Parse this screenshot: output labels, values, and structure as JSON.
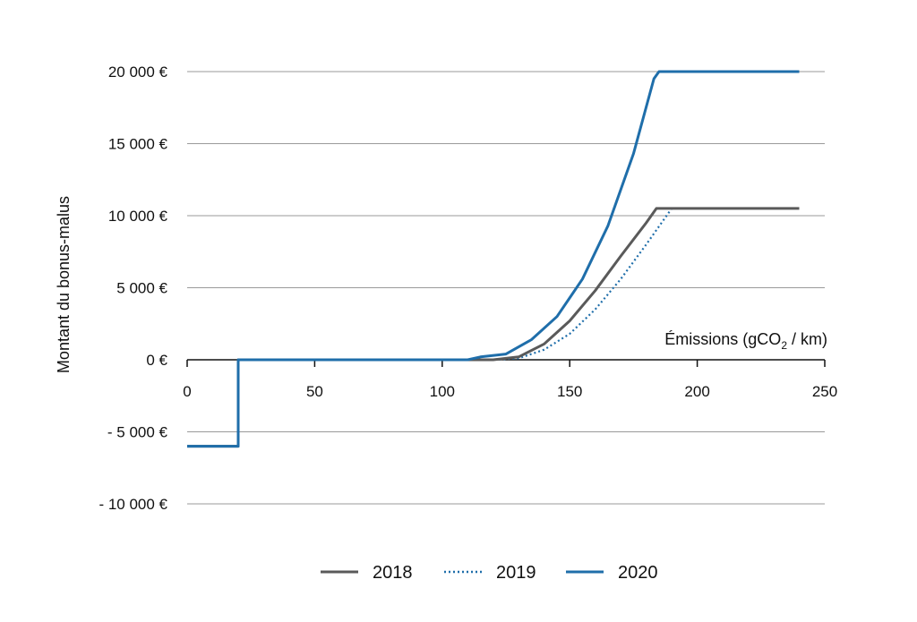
{
  "chart_data": {
    "type": "line",
    "ylabel": "Montant du bonus-malus",
    "xlabel": {
      "main": "Émissions (gCO",
      "sub": "2",
      "tail": " / km)"
    },
    "xlim": [
      0,
      250
    ],
    "ylim": [
      -10000,
      20000
    ],
    "x_ticks": [
      {
        "value": 0,
        "label": "0"
      },
      {
        "value": 50,
        "label": "50"
      },
      {
        "value": 100,
        "label": "100"
      },
      {
        "value": 150,
        "label": "150"
      },
      {
        "value": 200,
        "label": "200"
      },
      {
        "value": 250,
        "label": "250"
      }
    ],
    "y_ticks": [
      {
        "value": 20000,
        "label": "20 000 €"
      },
      {
        "value": 15000,
        "label": "15 000 €"
      },
      {
        "value": 10000,
        "label": "10 000 €"
      },
      {
        "value": 5000,
        "label": "5 000 €"
      },
      {
        "value": 0,
        "label": "0 €"
      },
      {
        "value": -5000,
        "label": "- 5 000 €"
      },
      {
        "value": -10000,
        "label": "- 10 000 €"
      }
    ],
    "grid": true,
    "legend_position": "bottom",
    "series": [
      {
        "name": "2018",
        "color": "#5a5a5a",
        "dash": "solid",
        "points": [
          [
            0,
            -6000
          ],
          [
            20,
            -6000
          ],
          [
            20,
            0
          ],
          [
            120,
            0
          ],
          [
            130,
            200
          ],
          [
            140,
            1100
          ],
          [
            150,
            2700
          ],
          [
            160,
            4800
          ],
          [
            170,
            7200
          ],
          [
            180,
            9500
          ],
          [
            184,
            10500
          ],
          [
            240,
            10500
          ]
        ]
      },
      {
        "name": "2019",
        "color": "#1f6eaa",
        "dash": "dotted",
        "points": [
          [
            0,
            -6000
          ],
          [
            20,
            -6000
          ],
          [
            20,
            0
          ],
          [
            120,
            0
          ],
          [
            130,
            100
          ],
          [
            140,
            700
          ],
          [
            150,
            1800
          ],
          [
            160,
            3500
          ],
          [
            170,
            5600
          ],
          [
            180,
            8000
          ],
          [
            190,
            10500
          ],
          [
            240,
            10500
          ]
        ]
      },
      {
        "name": "2020",
        "color": "#1f6eaa",
        "dash": "solid",
        "points": [
          [
            0,
            -6000
          ],
          [
            20,
            -6000
          ],
          [
            20,
            0
          ],
          [
            110,
            0
          ],
          [
            115,
            200
          ],
          [
            125,
            400
          ],
          [
            135,
            1400
          ],
          [
            145,
            3000
          ],
          [
            155,
            5600
          ],
          [
            165,
            9300
          ],
          [
            175,
            14300
          ],
          [
            183,
            19500
          ],
          [
            185,
            20000
          ],
          [
            240,
            20000
          ]
        ]
      }
    ]
  }
}
